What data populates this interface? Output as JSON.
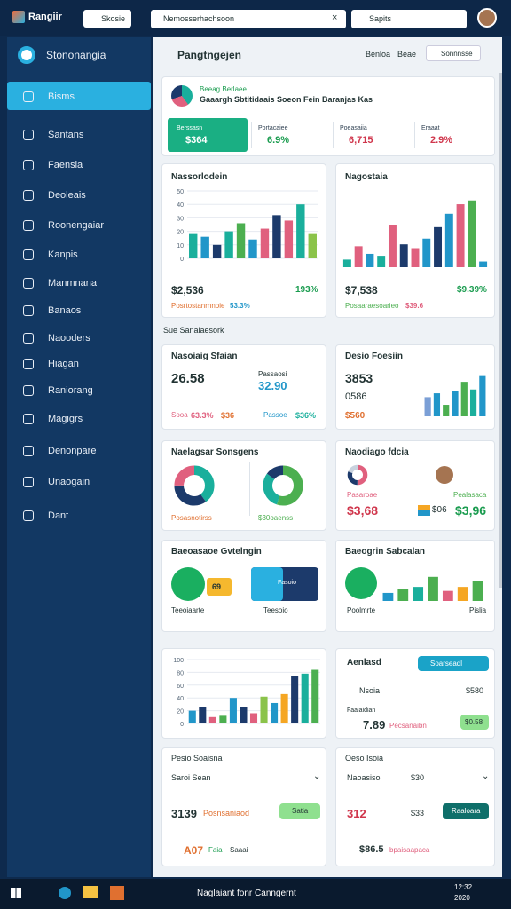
{
  "topbar": {
    "brand": "Rangiir",
    "tab": "Skosie",
    "address": "Nemosserhachsoon",
    "search": "Sapits"
  },
  "sidebar": {
    "app": "Stononangia",
    "items": [
      "Bisms",
      "Santans",
      "Faensia",
      "Deoleais",
      "Roonengaiar",
      "Kanpis",
      "Manmnana",
      "Banaos",
      "Naooders",
      "Hiagan",
      "Raniorang",
      "Magigrs",
      "Denonpare",
      "Unaogain",
      "Dant"
    ]
  },
  "header": {
    "title": "Pangtngejen",
    "actions": [
      "Benloa",
      "Beae",
      "Sonnnsse"
    ]
  },
  "banner": {
    "title": "Beeag Berlaee",
    "subtitle": "Gaaargh Sbtitidaais Soeon Fein Baranjas Kas",
    "stats": [
      {
        "label": "Berssasn",
        "value": "$364"
      },
      {
        "label": "Portacaiee",
        "value": "6.9%"
      },
      {
        "label": "Poeasaiia",
        "value": "6,715"
      },
      {
        "label": "Eraaat",
        "value": "2.9%"
      }
    ]
  },
  "sales": {
    "title": "Nassorlodein",
    "value": "$2,536",
    "change": "193%",
    "footer": "Posrtostanrnnoie",
    "footer_value": "53.3%",
    "chart": {
      "type": "bar",
      "values": [
        18,
        16,
        10,
        20,
        26,
        14,
        22,
        32,
        28,
        40,
        18
      ],
      "colors": [
        "#1aaf9c",
        "#2196c9",
        "#1c3a6b",
        "#1aaf9c",
        "#4caf50",
        "#2196c9",
        "#e0607e",
        "#1c3a6b",
        "#e0607e",
        "#1aaf9c",
        "#8bc34a"
      ],
      "ylim": [
        0,
        50
      ],
      "yticks": [
        0,
        10,
        20,
        30,
        40,
        50
      ]
    }
  },
  "orders": {
    "title": "Nagostaia",
    "value": "$7,538",
    "change": "$9.39%",
    "footer": "Posaaraesoarieo",
    "footer_value": "$39.6",
    "chart": {
      "type": "bar",
      "values": [
        8,
        22,
        14,
        12,
        44,
        24,
        20,
        30,
        42,
        56,
        66,
        70,
        6
      ],
      "colors": [
        "#1aaf9c",
        "#e0607e",
        "#2196c9",
        "#1aaf9c",
        "#e0607e",
        "#1c3a6b",
        "#e0607e",
        "#2196c9",
        "#1c3a6b",
        "#2196c9",
        "#e0607e",
        "#4caf50",
        "#2196c9"
      ],
      "ylim": [
        0,
        80
      ],
      "yticks": []
    }
  },
  "section": "Sue Sanalaesork",
  "traffic": {
    "title": "Nasoiaig Sfaian",
    "value": "26.58",
    "aside_label": "Passaosi",
    "aside_value": "32.90",
    "foot": [
      "Sooa",
      "63.3%",
      "$36",
      "Passoe",
      "$36%"
    ]
  },
  "visits": {
    "title": "Desio Foesiin",
    "value": "3853",
    "sub": "0586",
    "foot": "$560",
    "chart": {
      "type": "bar",
      "values": [
        20,
        24,
        12,
        26,
        36,
        28,
        42
      ],
      "colors": [
        "#7b9fd6",
        "#2196c9",
        "#4caf50",
        "#2196c9",
        "#4caf50",
        "#1aaf9c",
        "#2196c9"
      ],
      "ylim": [
        0,
        50
      ],
      "yticks": []
    }
  },
  "split": {
    "title": "Naelagsar Sonsgens",
    "left_label": "Posasnotirss",
    "right_label": "$30oaenss",
    "donut1": {
      "type": "pie",
      "values": [
        40,
        35,
        25
      ],
      "colors": [
        "#1aaf9c",
        "#1c3a6b",
        "#e0607e"
      ]
    },
    "donut2": {
      "type": "pie",
      "values": [
        55,
        30,
        15
      ],
      "colors": [
        "#4caf50",
        "#1aaf9c",
        "#1c3a6b"
      ]
    }
  },
  "region": {
    "title": "Naodiago fdcia",
    "left_label": "Pasaroae",
    "right_label": "Pealasaca",
    "left_value": "$3,68",
    "right_value": "$3,96",
    "right_sub": "$06",
    "pie": {
      "type": "pie",
      "values": [
        50,
        30,
        20
      ],
      "colors": [
        "#e0607e",
        "#1c3a6b",
        "#c8d2de"
      ]
    }
  },
  "perf": {
    "title": "Baeoasaoe Gvtelngin",
    "left_label": "Teeoiaarte",
    "right_label": "Teesoio",
    "badge": "69",
    "tag": "Fasoio"
  },
  "growth": {
    "title": "Baeogrin Sabcalan",
    "label": "Poolmrte",
    "foot": "Pislia",
    "chart": {
      "type": "bar",
      "values": [
        8,
        12,
        14,
        24,
        10,
        14,
        20
      ],
      "colors": [
        "#2196c9",
        "#4caf50",
        "#1aaf9c",
        "#4caf50",
        "#e0607e",
        "#f5a623",
        "#4caf50"
      ],
      "ylim": [
        0,
        30
      ],
      "yticks": []
    }
  },
  "trend": {
    "chart": {
      "type": "bar",
      "values": [
        20,
        26,
        10,
        12,
        40,
        26,
        16,
        42,
        32,
        46,
        74,
        78,
        84
      ],
      "colors": [
        "#2196c9",
        "#1c3a6b",
        "#e0607e",
        "#4caf50",
        "#2196c9",
        "#1c3a6b",
        "#e0607e",
        "#8bc34a",
        "#2196c9",
        "#f5a623",
        "#1c3a6b",
        "#1aaf9c",
        "#4caf50"
      ],
      "ylim": [
        0,
        100
      ],
      "yticks": [
        0,
        20,
        40,
        60,
        80,
        100
      ]
    }
  },
  "activity": {
    "title": "Aenlasd",
    "button": "Soarseadl",
    "rows": [
      {
        "label": "Nsoia",
        "value": "$580"
      },
      {
        "label": "Faaiaidian",
        "value": "7.89"
      }
    ],
    "sub": "Pecsanaibn",
    "badge": "$0.58"
  },
  "bottom_left": {
    "title": "Pesio Soaisna",
    "select": "Saroi Sean",
    "value": "3139",
    "value_label": "Posnsaniaod",
    "button": "Satia",
    "link": "A07",
    "link_label": "Faia",
    "link_sub": "Saaai"
  },
  "bottom_right": {
    "title": "Oeso Isoia",
    "select": "Naoasiso",
    "select_value": "$30",
    "value": "312",
    "value_sub": "$33",
    "button": "Raaloara",
    "link": "$86.5",
    "link_label": "bpaisaapaca"
  },
  "taskbar": {
    "center": "Naglaiant fonr Canngernt",
    "time": "12:32",
    "date": "2020"
  }
}
